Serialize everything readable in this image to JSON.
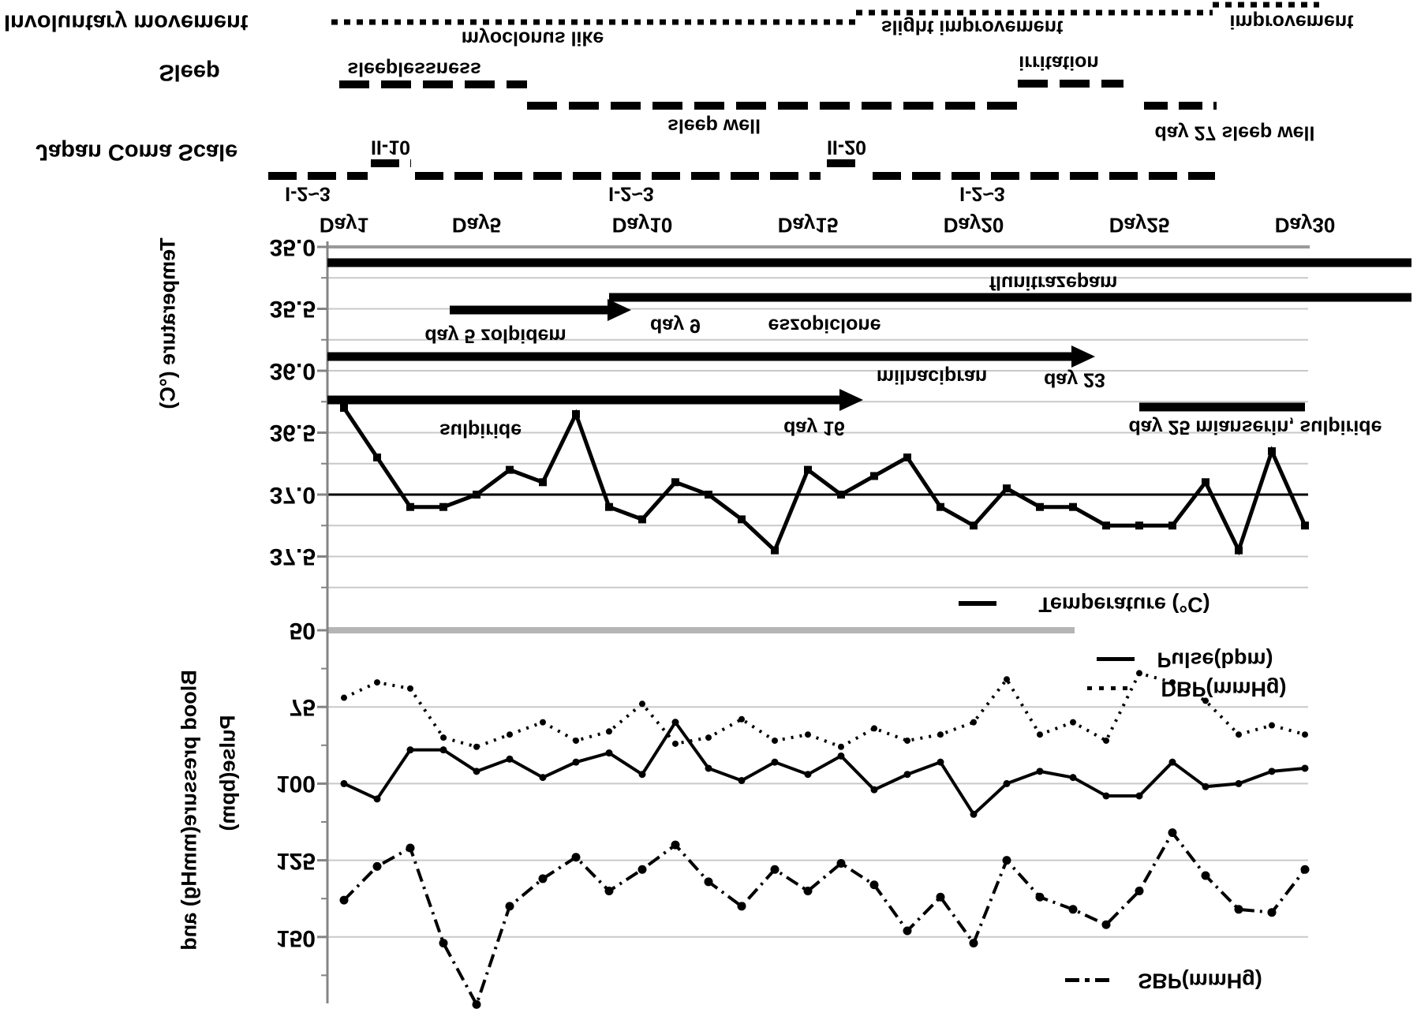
{
  "rows": {
    "involuntary": {
      "label": "Involuntary movement",
      "phases": [
        "myoclonus like",
        "slight improvement",
        "improvement"
      ]
    },
    "sleep": {
      "label": "Sleep",
      "phases": [
        "sleeplessness",
        "sleep well",
        "irritation",
        "day 27  sleep well"
      ]
    },
    "jcs": {
      "label": "Japan Coma Scale",
      "levels": [
        "I-2~3",
        "II-10",
        "I-2~3",
        "II-20",
        "I-2~3"
      ]
    }
  },
  "medications": {
    "flunitrazepam": "flunitrazepam",
    "eszopiclone_day": "day 9",
    "eszopiclone": "eszopiclone",
    "zolpidem": "day 5 zolpidem",
    "milnacipran": "milnacipran",
    "milnacipran_day": "day 23",
    "sulpiride": "sulpiride",
    "sulpiride_day": "day 16",
    "mianserin": "day 25  mianserin, sulpiride"
  },
  "axes": {
    "temp_axis_label": "Temperature (°C)",
    "bp_axis_label_line1": "Blood pressure(mmHg) and",
    "bp_axis_label_line2": "Pulse(bpm)",
    "temp_ticks": [
      "35.0",
      "35.5",
      "36.0",
      "36.5",
      "37.0",
      "37.5"
    ],
    "bp_ticks": [
      "50",
      "75",
      "100",
      "125",
      "150"
    ],
    "day_ticks": [
      "Day1",
      "Day5",
      "Day10",
      "Day15",
      "Day20",
      "Day25",
      "Day30"
    ]
  },
  "legend": {
    "temperature": "Temperature (°C)",
    "pulse": "Pulse(bpm)",
    "dbp": "DBP(mmHg)",
    "sbp": "SBP(mmHg)"
  },
  "colors": {
    "series": "#000000",
    "gridline": "#c9c9c9",
    "axis": "#848484",
    "top_gridline": "#9a9a9a",
    "boundary_band": "#b5b5b5"
  },
  "chart_data": {
    "type": "line",
    "note": "Figure is rendered vertically mirrored (upside-down glyphs); values increase downward on screen.",
    "x_label": "Day",
    "x": [
      1,
      2,
      3,
      4,
      5,
      6,
      7,
      8,
      9,
      10,
      11,
      12,
      13,
      14,
      15,
      16,
      17,
      18,
      19,
      20,
      21,
      22,
      23,
      24,
      25,
      26,
      27,
      28,
      29,
      30
    ],
    "temp_axis_range": [
      35.0,
      37.5
    ],
    "bp_axis_range": [
      50,
      150
    ],
    "grid": "on",
    "reference_line": {
      "series": "Temperature (°C)",
      "value": 37.0
    },
    "series": [
      {
        "name": "Temperature (°C)",
        "unit": "°C",
        "style": "solid",
        "values": [
          36.3,
          36.7,
          37.1,
          37.1,
          37.0,
          36.8,
          36.9,
          36.35,
          37.1,
          37.2,
          36.9,
          37.0,
          37.2,
          37.45,
          36.8,
          37.0,
          36.85,
          36.7,
          37.1,
          37.25,
          36.95,
          37.1,
          37.1,
          37.25,
          37.25,
          37.25,
          36.9,
          37.45,
          36.65,
          37.25
        ]
      },
      {
        "name": "Pulse(bpm)",
        "unit": "bpm",
        "style": "solid",
        "values": [
          100,
          105,
          89,
          89,
          96,
          92,
          98,
          93,
          90,
          97,
          80,
          95,
          99,
          93,
          97,
          91,
          102,
          97,
          93,
          110,
          100,
          96,
          98,
          104,
          104,
          93,
          101,
          100,
          96,
          95
        ]
      },
      {
        "name": "DBP(mmHg)",
        "unit": "mmHg",
        "style": "dotted",
        "values": [
          72,
          67,
          69,
          85,
          88,
          84,
          80,
          86,
          83,
          74,
          87,
          85,
          79,
          86,
          84,
          88,
          82,
          86,
          84,
          80,
          66,
          84,
          80,
          86,
          64,
          67,
          73,
          84,
          81,
          84
        ]
      },
      {
        "name": "SBP(mmHg)",
        "unit": "mmHg",
        "style": "dashdot",
        "values": [
          138,
          127,
          121,
          152,
          172,
          140,
          131,
          124,
          135,
          128,
          120,
          132,
          140,
          128,
          135,
          126,
          133,
          148,
          137,
          152,
          125,
          137,
          141,
          146,
          135,
          116,
          130,
          141,
          142,
          128
        ]
      }
    ],
    "medication_bars": [
      {
        "name": "flunitrazepam",
        "from_day": 1,
        "to_day": 30,
        "from_axis": true,
        "ongoing": true,
        "arrow": false
      },
      {
        "name": "eszopiclone",
        "from_day": 9,
        "to_day": 30,
        "from_axis": false,
        "ongoing": true,
        "arrow": false
      },
      {
        "name": "zolpidem",
        "from_day": 5,
        "to_day": 9,
        "from_axis": false,
        "ongoing": false,
        "arrow": true
      },
      {
        "name": "milnacipran",
        "from_day": 1,
        "to_day": 23,
        "from_axis": true,
        "ongoing": false,
        "arrow": true
      },
      {
        "name": "sulpiride",
        "from_day": 1,
        "to_day": 16,
        "from_axis": true,
        "ongoing": false,
        "arrow": true
      },
      {
        "name": "mianserin, sulpiride",
        "from_day": 25,
        "to_day": 30,
        "from_axis": false,
        "ongoing": false,
        "arrow": false
      }
    ]
  }
}
